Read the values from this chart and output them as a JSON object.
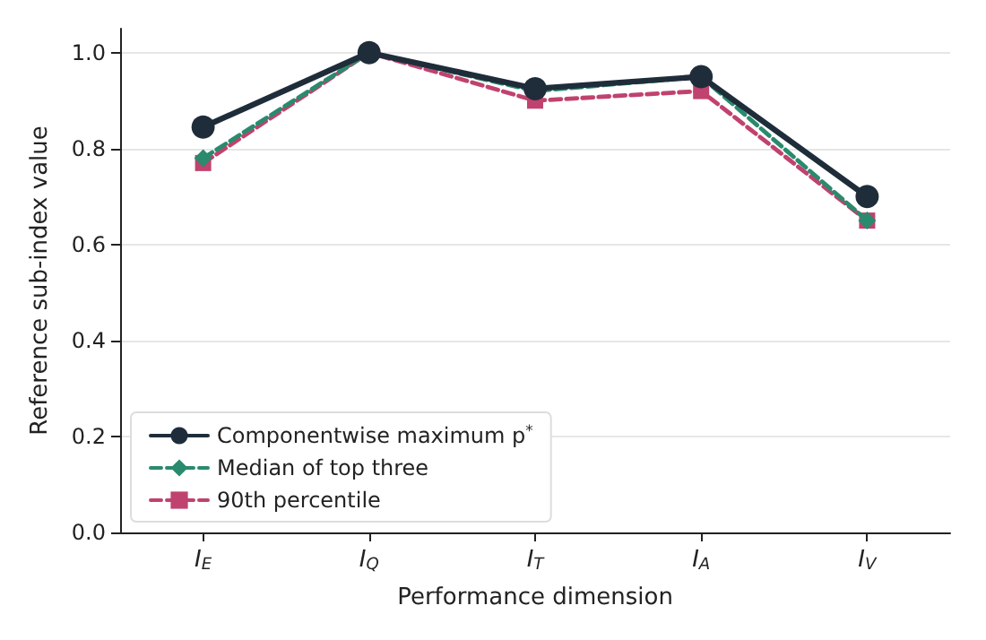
{
  "chart_data": {
    "type": "line",
    "xlabel": "Performance dimension",
    "ylabel": "Reference sub-index value",
    "categories": [
      "I$_{E}$",
      "I$_{Q}$",
      "I$_{T}$",
      "I$_{A}$",
      "I$_{V}$"
    ],
    "series": [
      {
        "name": "Componentwise maximum p$^{*}$",
        "color": "#1f2d3a",
        "marker": "circle",
        "line_style": "solid",
        "values": [
          0.845,
          1.0,
          0.925,
          0.95,
          0.7
        ]
      },
      {
        "name": "Median of top three",
        "color": "#2a8a6e",
        "marker": "diamond",
        "line_style": "dashed",
        "values": [
          0.78,
          1.0,
          0.92,
          0.95,
          0.65
        ]
      },
      {
        "name": "90th percentile",
        "color": "#c0426e",
        "marker": "square",
        "line_style": "dashed",
        "values": [
          0.77,
          1.0,
          0.9,
          0.92,
          0.65
        ]
      }
    ],
    "ylim": [
      0,
      1.05
    ],
    "yticks": [
      {
        "value": 0,
        "label": "0.0"
      },
      0.2,
      0.4,
      0.6,
      0.8,
      {
        "value": 1,
        "label": "1.0"
      }
    ],
    "grid": "y",
    "legend": "bottom left"
  }
}
